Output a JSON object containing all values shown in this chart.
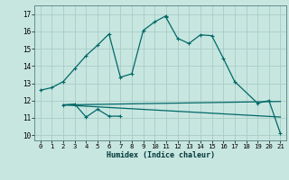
{
  "bg_color": "#c8e6e0",
  "grid_color": "#a8ccc8",
  "line_color": "#006868",
  "xlabel": "Humidex (Indice chaleur)",
  "xlim": [
    -0.5,
    21.5
  ],
  "ylim": [
    9.7,
    17.5
  ],
  "xticks": [
    0,
    1,
    2,
    3,
    4,
    5,
    6,
    7,
    8,
    9,
    10,
    11,
    12,
    13,
    14,
    15,
    16,
    17,
    18,
    19,
    20,
    21
  ],
  "yticks": [
    10,
    11,
    12,
    13,
    14,
    15,
    16,
    17
  ],
  "curve1_x": [
    0,
    1,
    2,
    3,
    4,
    5,
    6,
    7,
    8,
    9,
    10,
    11
  ],
  "curve1_y": [
    12.6,
    12.75,
    13.1,
    13.85,
    14.6,
    15.2,
    15.85,
    13.35,
    13.55,
    16.05,
    16.55,
    16.9
  ],
  "curve2_x": [
    11,
    12,
    13,
    14,
    15,
    16,
    17,
    19,
    20,
    21
  ],
  "curve2_y": [
    16.8,
    15.6,
    15.3,
    15.8,
    15.75,
    14.45,
    13.1,
    11.85,
    12.0,
    10.1
  ],
  "curve3_x": [
    2,
    3,
    4,
    5,
    6,
    7
  ],
  "curve3_y": [
    11.75,
    11.8,
    11.05,
    11.5,
    11.1,
    11.1
  ],
  "flatline1_x": [
    2,
    21
  ],
  "flatline1_y": [
    11.75,
    11.95
  ],
  "flatline2_x": [
    2,
    21
  ],
  "flatline2_y": [
    11.75,
    11.05
  ]
}
